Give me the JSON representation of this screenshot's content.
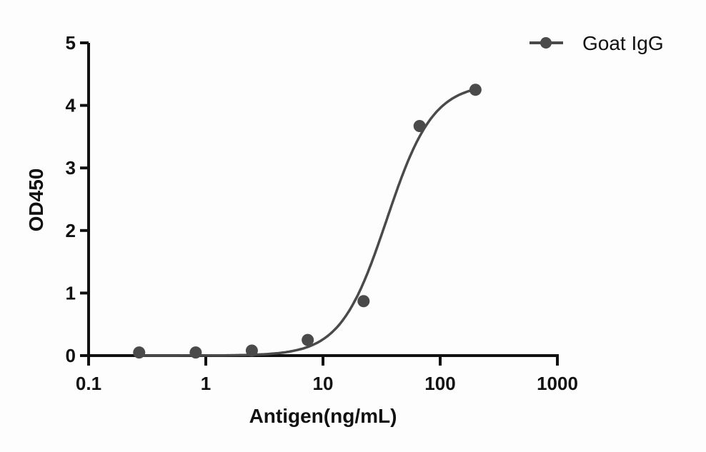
{
  "chart_data": {
    "type": "scatter",
    "title": "",
    "xlabel": "Antigen(ng/mL)",
    "ylabel": "OD450",
    "xscale": "log",
    "xlim": [
      0.1,
      1000
    ],
    "ylim": [
      0,
      5
    ],
    "x_ticks": [
      "0.1",
      "1",
      "10",
      "100",
      "1000"
    ],
    "y_ticks": [
      "0",
      "1",
      "2",
      "3",
      "4",
      "5"
    ],
    "grid": false,
    "legend_position": "top-right",
    "series": [
      {
        "name": "Goat IgG",
        "color": "#4a4a4a",
        "marker": "circle",
        "fit": "4-parameter logistic curve",
        "x": [
          0.27,
          0.82,
          2.47,
          7.41,
          22.2,
          66.7,
          200
        ],
        "values": [
          0.05,
          0.05,
          0.08,
          0.25,
          0.87,
          3.67,
          4.25
        ]
      }
    ]
  }
}
